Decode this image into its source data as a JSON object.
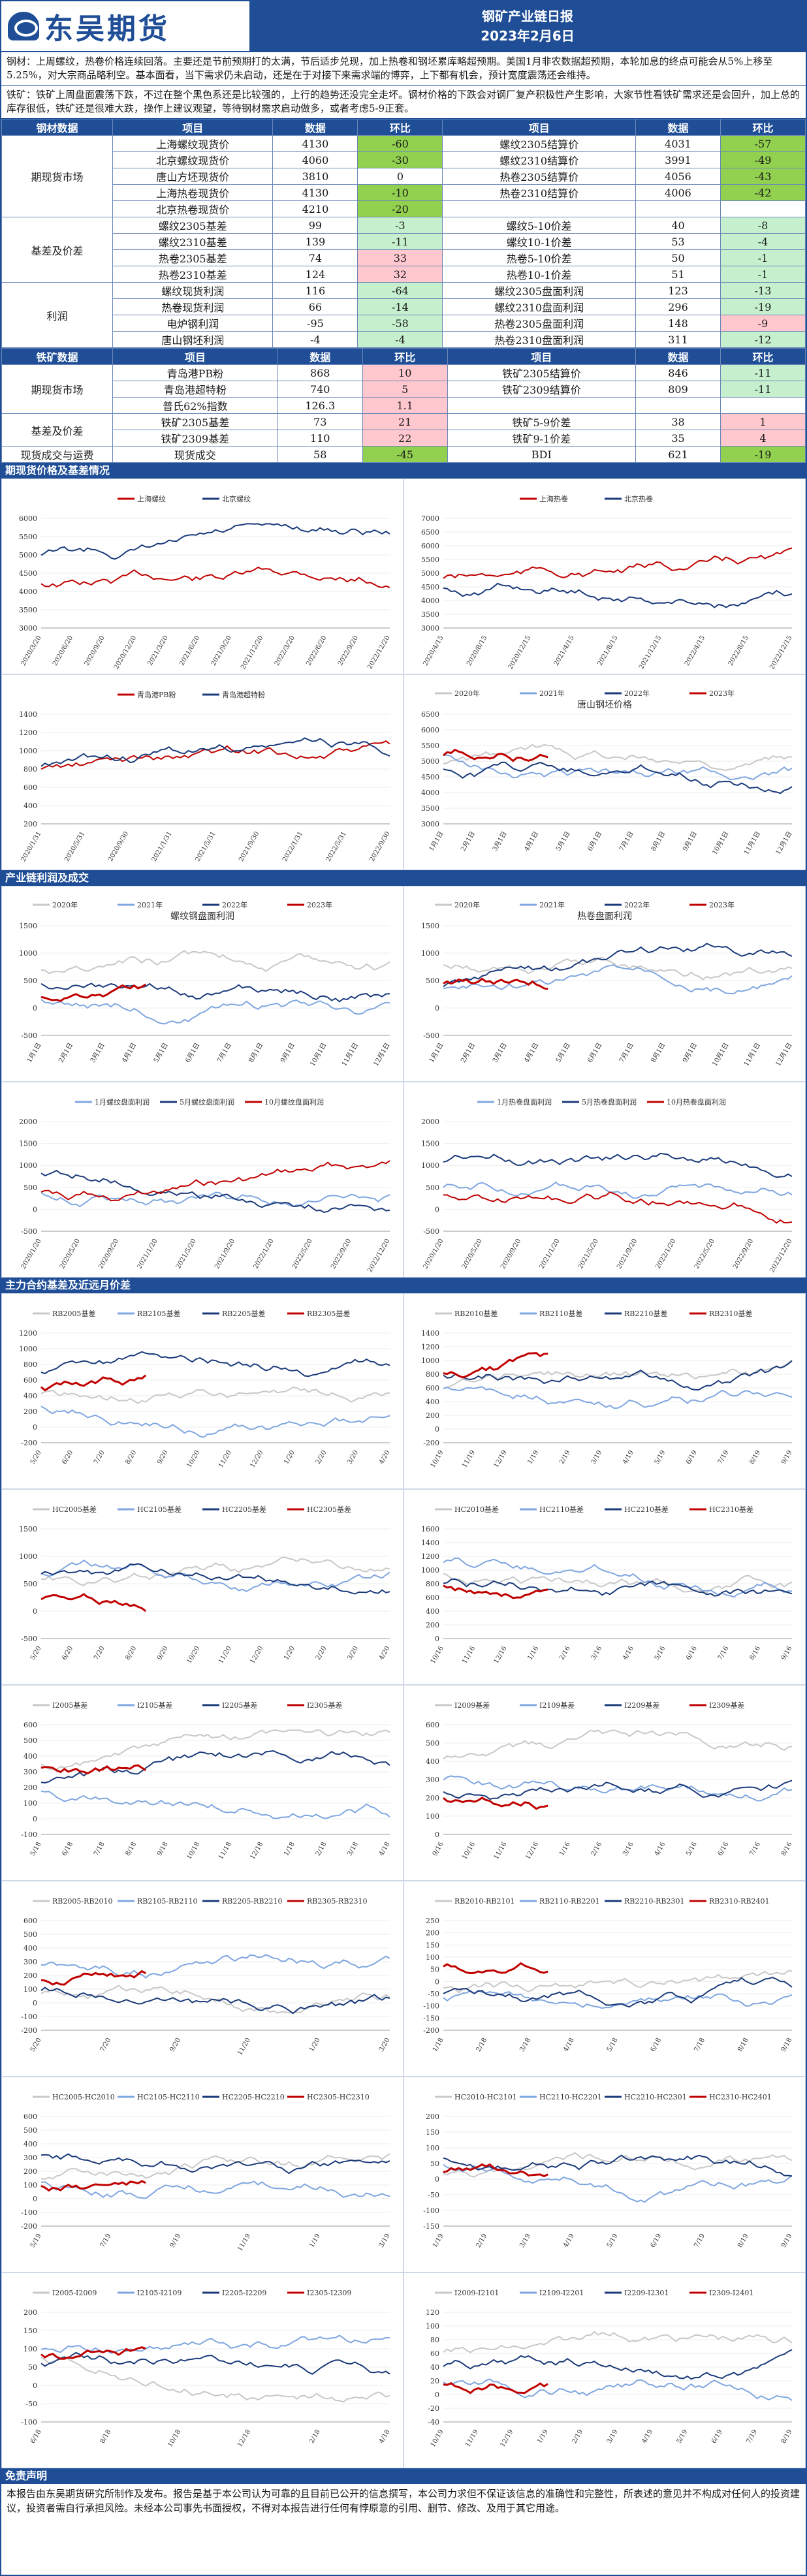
{
  "header": {
    "logo": "东吴期货",
    "title": "钢矿产业链日报",
    "date": "2023年2月6日"
  },
  "summary": {
    "steel": "钢材：上周螺纹，热卷价格连续回落。主要还是节前预期打的太满，节后适步兑现，加上热卷和钢坯累库略超预期。美国1月非农数据超预期，本轮加息的终点可能会从5%上移至5.25%，对大宗商品略利空。基本面看，当下需求仍未启动，还是在于对接下来需求端的博弈，上下都有机会，预计宽度震荡还会维持。",
    "ore": "铁矿：铁矿上周盘面震荡下跌，不过在整个黑色系还是比较强的，上行的趋势还没完全走坏。钢材价格的下跌会对钢厂复产积极性产生影响，大家节性看铁矿需求还是会回升，加上总的库存很低，铁矿还是很难大跌，操作上建议观望，等待钢材需求启动做多，或者考虑5-9正套。"
  },
  "steel_table": {
    "headers": [
      "钢材数据",
      "项目",
      "数据",
      "环比",
      "项目",
      "数据",
      "环比"
    ],
    "groups": [
      "期现货市场",
      "基差及价差",
      "利润"
    ],
    "rows": [
      [
        "上海螺纹现货价",
        "4130",
        "-60",
        "螺纹2305结算价",
        "4031",
        "-57"
      ],
      [
        "北京螺纹现货价",
        "4060",
        "-30",
        "螺纹2310结算价",
        "3991",
        "-49"
      ],
      [
        "唐山方坯现货价",
        "3810",
        "0",
        "热卷2305结算价",
        "4056",
        "-43"
      ],
      [
        "上海热卷现货价",
        "4130",
        "-10",
        "热卷2310结算价",
        "4006",
        "-42"
      ],
      [
        "北京热卷现货价",
        "4210",
        "-20",
        "",
        "",
        ""
      ],
      [
        "螺纹2305基差",
        "99",
        "-3",
        "螺纹5-10价差",
        "40",
        "-8"
      ],
      [
        "螺纹2310基差",
        "139",
        "-11",
        "螺纹10-1价差",
        "53",
        "-4"
      ],
      [
        "热卷2305基差",
        "74",
        "33",
        "热卷5-10价差",
        "50",
        "-1"
      ],
      [
        "热卷2310基差",
        "124",
        "32",
        "热卷10-1价差",
        "51",
        "-1"
      ],
      [
        "螺纹现货利润",
        "116",
        "-64",
        "螺纹2305盘面利润",
        "123",
        "-13"
      ],
      [
        "热卷现货利润",
        "66",
        "-14",
        "螺纹2310盘面利润",
        "296",
        "-19"
      ],
      [
        "电炉钢利润",
        "-95",
        "-58",
        "热卷2305盘面利润",
        "148",
        "-9"
      ],
      [
        "唐山钢坯利润",
        "-4",
        "-4",
        "热卷2310盘面利润",
        "311",
        "-12"
      ]
    ]
  },
  "ore_table": {
    "headers": [
      "铁矿数据",
      "项目",
      "数据",
      "环比",
      "项目",
      "数据",
      "环比"
    ],
    "groups": [
      "期现货市场",
      "基差及价差",
      "现货成交与运费"
    ],
    "rows": [
      [
        "青岛港PB粉",
        "868",
        "10",
        "铁矿2305结算价",
        "846",
        "-11"
      ],
      [
        "青岛港超特粉",
        "740",
        "5",
        "铁矿2309结算价",
        "809",
        "-11"
      ],
      [
        "普氏62%指数",
        "126.3",
        "1.1",
        "",
        "",
        ""
      ],
      [
        "铁矿2305基差",
        "73",
        "21",
        "铁矿5-9价差",
        "38",
        "1"
      ],
      [
        "铁矿2309基差",
        "110",
        "22",
        "铁矿9-1价差",
        "35",
        "4"
      ],
      [
        "现货成交",
        "58",
        "-45",
        "BDI",
        "621",
        "-19"
      ]
    ]
  },
  "sections": [
    "期现货价格及基差情况",
    "产业链利润及成交",
    "主力合约基差及近远月价差"
  ],
  "colors": {
    "brand": "#1f4e96",
    "dark": "#1a3a7a",
    "red": "#c00000",
    "light_blue": "#7fa6e0",
    "gray": "#c8c8c8"
  },
  "charts": [
    {
      "legend": [
        "上海螺纹",
        "北京螺纹"
      ],
      "title": "",
      "xticks": [
        "2020/3/20",
        "2020/6/20",
        "2020/9/20",
        "2020/12/20",
        "2021/3/20",
        "2021/6/20",
        "2021/9/20",
        "2021/12/20",
        "2022/3/20",
        "2022/6/20",
        "2022/9/20",
        "2022/12/20"
      ],
      "yticks": [
        "6000",
        "5500",
        "5000",
        "4500",
        "4000",
        "3500",
        "3000"
      ]
    },
    {
      "legend": [
        "上海热卷",
        "北京热卷"
      ],
      "title": "",
      "xticks": [
        "2020/4/15",
        "2020/8/15",
        "2020/12/15",
        "2021/4/15",
        "2021/8/15",
        "2021/12/15",
        "2022/4/15",
        "2022/8/15",
        "2022/12/15"
      ],
      "yticks": [
        "7000",
        "6500",
        "6000",
        "5500",
        "5000",
        "4500",
        "4000",
        "3500",
        "3000"
      ]
    },
    {
      "legend": [
        "青岛港PB粉",
        "青岛港超特粉"
      ],
      "title": "",
      "xticks": [
        "2020/1/31",
        "2020/5/31",
        "2020/9/30",
        "2021/1/31",
        "2021/5/31",
        "2021/9/30",
        "2022/1/31",
        "2022/5/31",
        "2022/9/30"
      ],
      "yticks": [
        "1400",
        "1200",
        "1000",
        "800",
        "600",
        "400",
        "200"
      ]
    },
    {
      "legend": [
        "2020年",
        "2021年",
        "2022年",
        "2023年"
      ],
      "title": "唐山钢坯价格",
      "xticks": [
        "1月1日",
        "2月1日",
        "3月1日",
        "4月1日",
        "5月1日",
        "6月1日",
        "7月1日",
        "8月1日",
        "9月1日",
        "10月1日",
        "11月1日",
        "12月1日"
      ],
      "yticks": [
        "6500",
        "6000",
        "5500",
        "5000",
        "4500",
        "4000",
        "3500",
        "3000"
      ]
    },
    {
      "legend": [
        "2020年",
        "2021年",
        "2022年",
        "2023年"
      ],
      "title": "螺纹钢盘面利润",
      "xticks": [
        "1月1日",
        "2月1日",
        "3月1日",
        "4月1日",
        "5月1日",
        "6月1日",
        "7月1日",
        "8月1日",
        "9月1日",
        "10月1日",
        "11月1日",
        "12月1日"
      ],
      "yticks": [
        "1500",
        "1000",
        "500",
        "0",
        "-500"
      ]
    },
    {
      "legend": [
        "2020年",
        "2021年",
        "2022年",
        "2023年"
      ],
      "title": "热卷盘面利润",
      "xticks": [
        "1月1日",
        "2月1日",
        "3月1日",
        "4月1日",
        "5月1日",
        "6月1日",
        "7月1日",
        "8月1日",
        "9月1日",
        "10月1日",
        "11月1日",
        "12月1日"
      ],
      "yticks": [
        "1500",
        "1000",
        "500",
        "0",
        "-500"
      ]
    },
    {
      "legend": [
        "1月螺纹盘面利润",
        "5月螺纹盘面利润",
        "10月螺纹盘面利润"
      ],
      "title": "",
      "xticks": [
        "2020/1/20",
        "2020/5/20",
        "2020/9/20",
        "2021/1/20",
        "2021/5/20",
        "2021/9/20",
        "2022/1/20",
        "2022/5/20",
        "2022/9/20",
        "2022/12/20"
      ],
      "yticks": [
        "2000",
        "1500",
        "1000",
        "500",
        "0",
        "-500"
      ]
    },
    {
      "legend": [
        "1月热卷盘面利润",
        "5月热卷盘面利润",
        "10月热卷盘面利润"
      ],
      "title": "",
      "xticks": [
        "2020/1/20",
        "2020/5/20",
        "2020/9/20",
        "2021/1/20",
        "2021/5/20",
        "2021/9/20",
        "2022/1/20",
        "2022/5/20",
        "2022/9/20",
        "2022/12/20"
      ],
      "yticks": [
        "2000",
        "1500",
        "1000",
        "500",
        "0",
        "-500"
      ]
    },
    {
      "legend": [
        "RB2005基差",
        "RB2105基差",
        "RB2205基差",
        "RB2305基差"
      ],
      "title": "",
      "xticks": [
        "5/20",
        "6/20",
        "7/20",
        "8/20",
        "9/20",
        "10/20",
        "11/20",
        "12/20",
        "1/20",
        "2/20",
        "3/20",
        "4/20"
      ],
      "yticks": [
        "1200",
        "1000",
        "800",
        "600",
        "400",
        "200",
        "0",
        "-200"
      ]
    },
    {
      "legend": [
        "RB2010基差",
        "RB2110基差",
        "RB2210基差",
        "RB2310基差"
      ],
      "title": "",
      "xticks": [
        "10/19",
        "11/19",
        "12/19",
        "1/19",
        "2/19",
        "3/19",
        "4/19",
        "5/19",
        "6/19",
        "7/19",
        "8/19",
        "9/19"
      ],
      "yticks": [
        "1400",
        "1200",
        "1000",
        "800",
        "600",
        "400",
        "200",
        "0",
        "-200"
      ]
    },
    {
      "legend": [
        "HC2005基差",
        "HC2105基差",
        "HC2205基差",
        "HC2305基差"
      ],
      "title": "",
      "xticks": [
        "5/20",
        "6/20",
        "7/20",
        "8/20",
        "9/20",
        "10/20",
        "11/20",
        "12/20",
        "1/20",
        "2/20",
        "3/20",
        "4/20"
      ],
      "yticks": [
        "1500",
        "1000",
        "500",
        "0",
        "-500"
      ]
    },
    {
      "legend": [
        "HC2010基差",
        "HC2110基差",
        "HC2210基差",
        "HC2310基差"
      ],
      "title": "",
      "xticks": [
        "10/16",
        "11/16",
        "12/16",
        "1/16",
        "2/16",
        "3/16",
        "4/16",
        "5/16",
        "6/16",
        "7/16",
        "8/16",
        "9/16"
      ],
      "yticks": [
        "1600",
        "1400",
        "1200",
        "1000",
        "800",
        "600",
        "400",
        "200",
        "0"
      ]
    },
    {
      "legend": [
        "I2005基差",
        "I2105基差",
        "I2205基差",
        "I2305基差"
      ],
      "title": "",
      "xticks": [
        "5/18",
        "6/18",
        "7/18",
        "8/18",
        "9/18",
        "10/18",
        "11/18",
        "12/18",
        "1/18",
        "2/18",
        "3/18",
        "4/18"
      ],
      "yticks": [
        "600",
        "500",
        "400",
        "300",
        "200",
        "100",
        "0",
        "-100"
      ]
    },
    {
      "legend": [
        "I2009基差",
        "I2109基差",
        "I2209基差",
        "I2309基差"
      ],
      "title": "",
      "xticks": [
        "9/16",
        "10/16",
        "11/16",
        "12/16",
        "1/16",
        "2/16",
        "3/16",
        "4/16",
        "5/16",
        "6/16",
        "7/16",
        "8/16"
      ],
      "yticks": [
        "600",
        "500",
        "400",
        "300",
        "200",
        "100",
        "0"
      ]
    },
    {
      "legend": [
        "RB2005-RB2010",
        "RB2105-RB2110",
        "RB2205-RB2210",
        "RB2305-RB2310"
      ],
      "title": "",
      "xticks": [
        "5/20",
        "7/20",
        "9/20",
        "11/20",
        "1/20",
        "3/20"
      ],
      "yticks": [
        "600",
        "500",
        "400",
        "300",
        "200",
        "100",
        "0",
        "-100",
        "-200"
      ]
    },
    {
      "legend": [
        "RB2010-RB2101",
        "RB2110-RB2201",
        "RB2210-RB2301",
        "RB2310-RB2401"
      ],
      "title": "",
      "xticks": [
        "1/18",
        "2/18",
        "3/18",
        "4/18",
        "5/18",
        "6/18",
        "7/18",
        "8/18",
        "9/18"
      ],
      "yticks": [
        "250",
        "200",
        "150",
        "100",
        "50",
        "0",
        "-50",
        "-100",
        "-150",
        "-200"
      ]
    },
    {
      "legend": [
        "HC2005-HC2010",
        "HC2105-HC2110",
        "HC2205-HC2210",
        "HC2305-HC2310"
      ],
      "title": "",
      "xticks": [
        "5/19",
        "7/19",
        "9/19",
        "11/19",
        "1/19",
        "3/19"
      ],
      "yticks": [
        "600",
        "500",
        "400",
        "300",
        "200",
        "100",
        "0",
        "-100",
        "-200"
      ]
    },
    {
      "legend": [
        "HC2010-HC2101",
        "HC2110-HC2201",
        "HC2210-HC2301",
        "HC2310-HC2401"
      ],
      "title": "",
      "xticks": [
        "1/19",
        "2/19",
        "3/19",
        "4/19",
        "5/19",
        "6/19",
        "7/19",
        "8/19",
        "9/19"
      ],
      "yticks": [
        "200",
        "150",
        "100",
        "50",
        "0",
        "-50",
        "-100",
        "-150"
      ]
    },
    {
      "legend": [
        "I2005-I2009",
        "I2105-I2109",
        "I2205-I2209",
        "I2305-I2309"
      ],
      "title": "",
      "xticks": [
        "6/18",
        "8/18",
        "10/18",
        "12/18",
        "2/18",
        "4/18"
      ],
      "yticks": [
        "200",
        "150",
        "100",
        "50",
        "0",
        "-50",
        "-100"
      ]
    },
    {
      "legend": [
        "I2009-I2101",
        "I2109-I2201",
        "I2209-I2301",
        "I2309-I2401"
      ],
      "title": "",
      "xticks": [
        "10/19",
        "11/19",
        "12/19",
        "1/19",
        "2/19",
        "3/19",
        "4/19",
        "5/19",
        "6/19",
        "7/19",
        "8/19"
      ],
      "yticks": [
        "120",
        "100",
        "80",
        "60",
        "40",
        "20",
        "0",
        "-20",
        "-40"
      ]
    }
  ],
  "footer": {
    "title": "免责声明",
    "text": "本报告由东吴期货研究所制作及发布。报告是基于本公司认为可靠的且目前已公开的信息撰写，本公司力求但不保证该信息的准确性和完整性，所表述的意见并不构成对任何人的投资建议，投资者需自行承担风险。未经本公司事先书面授权，不得对本报告进行任何有悖原意的引用、删节、修改、及用于其它用途。"
  }
}
